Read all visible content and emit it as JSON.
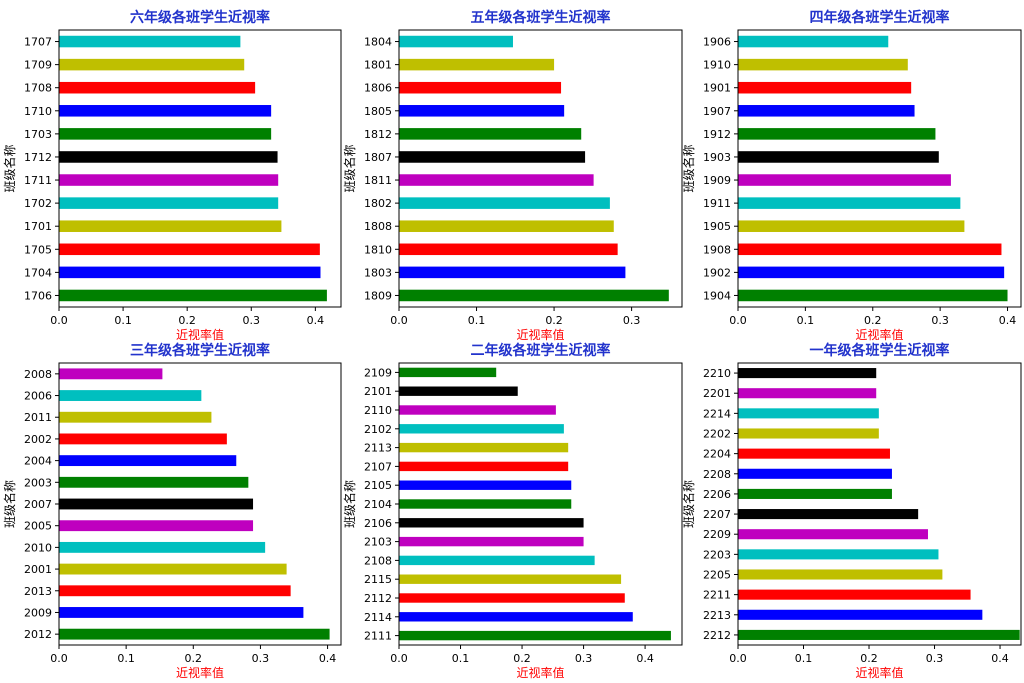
{
  "colors": {
    "cycle": [
      "#008000",
      "#0000ff",
      "#ff0000",
      "#bfbf00",
      "#00bfbf",
      "#bf00bf",
      "#000000"
    ],
    "title": "#2233cc",
    "xlabel": "#ff0000",
    "text": "#000000"
  },
  "chart_data": [
    {
      "type": "bar",
      "orientation": "horizontal",
      "title": "六年级各班学生近视率",
      "xlabel": "近视率值",
      "ylabel": "班级名称",
      "xlim": [
        0,
        0.44
      ],
      "xticks": [
        "0.0",
        "0.1",
        "0.2",
        "0.3",
        "0.4"
      ],
      "categories": [
        "1706",
        "1704",
        "1705",
        "1701",
        "1702",
        "1711",
        "1712",
        "1703",
        "1710",
        "1708",
        "1709",
        "1707"
      ],
      "values": [
        0.418,
        0.408,
        0.407,
        0.347,
        0.342,
        0.342,
        0.341,
        0.331,
        0.331,
        0.306,
        0.289,
        0.283
      ]
    },
    {
      "type": "bar",
      "orientation": "horizontal",
      "title": "五年级各班学生近视率",
      "xlabel": "近视率值",
      "ylabel": "班级名称",
      "xlim": [
        0,
        0.365
      ],
      "xticks": [
        "0.0",
        "0.1",
        "0.2",
        "0.3"
      ],
      "categories": [
        "1809",
        "1803",
        "1810",
        "1808",
        "1802",
        "1811",
        "1807",
        "1812",
        "1805",
        "1806",
        "1801",
        "1804"
      ],
      "values": [
        0.348,
        0.292,
        0.282,
        0.277,
        0.272,
        0.251,
        0.24,
        0.235,
        0.213,
        0.209,
        0.2,
        0.147
      ]
    },
    {
      "type": "bar",
      "orientation": "horizontal",
      "title": "四年级各班学生近视率",
      "xlabel": "近视率值",
      "ylabel": "班级名称",
      "xlim": [
        0,
        0.42
      ],
      "xticks": [
        "0.0",
        "0.1",
        "0.2",
        "0.3",
        "0.4"
      ],
      "categories": [
        "1904",
        "1902",
        "1908",
        "1905",
        "1911",
        "1909",
        "1903",
        "1912",
        "1907",
        "1901",
        "1910",
        "1906"
      ],
      "values": [
        0.4,
        0.395,
        0.391,
        0.336,
        0.33,
        0.316,
        0.298,
        0.293,
        0.262,
        0.257,
        0.252,
        0.223
      ]
    },
    {
      "type": "bar",
      "orientation": "horizontal",
      "title": "三年级各班学生近视率",
      "xlabel": "近视率值",
      "ylabel": "班级名称",
      "xlim": [
        0,
        0.42
      ],
      "xticks": [
        "0.0",
        "0.1",
        "0.2",
        "0.3",
        "0.4"
      ],
      "categories": [
        "2012",
        "2009",
        "2013",
        "2001",
        "2010",
        "2005",
        "2007",
        "2003",
        "2004",
        "2002",
        "2011",
        "2006",
        "2008"
      ],
      "values": [
        0.403,
        0.364,
        0.345,
        0.339,
        0.307,
        0.289,
        0.289,
        0.282,
        0.264,
        0.25,
        0.227,
        0.212,
        0.154
      ]
    },
    {
      "type": "bar",
      "orientation": "horizontal",
      "title": "二年级各班学生近视率",
      "xlabel": "近视率值",
      "ylabel": "班级名称",
      "xlim": [
        0,
        0.46
      ],
      "xticks": [
        "0.0",
        "0.1",
        "0.2",
        "0.3",
        "0.4"
      ],
      "categories": [
        "2111",
        "2114",
        "2112",
        "2115",
        "2108",
        "2103",
        "2106",
        "2104",
        "2105",
        "2107",
        "2113",
        "2102",
        "2110",
        "2101",
        "2109"
      ],
      "values": [
        0.442,
        0.38,
        0.367,
        0.361,
        0.318,
        0.3,
        0.3,
        0.28,
        0.28,
        0.275,
        0.275,
        0.268,
        0.255,
        0.193,
        0.158
      ]
    },
    {
      "type": "bar",
      "orientation": "horizontal",
      "title": "一年级各班学生近视率",
      "xlabel": "近视率值",
      "ylabel": "班级名称",
      "xlim": [
        0,
        0.432
      ],
      "xticks": [
        "0.0",
        "0.1",
        "0.2",
        "0.3",
        "0.4"
      ],
      "categories": [
        "2212",
        "2213",
        "2211",
        "2205",
        "2203",
        "2209",
        "2207",
        "2206",
        "2208",
        "2204",
        "2202",
        "2214",
        "2201",
        "2210"
      ],
      "values": [
        0.43,
        0.373,
        0.355,
        0.312,
        0.306,
        0.29,
        0.275,
        0.235,
        0.235,
        0.232,
        0.215,
        0.215,
        0.211,
        0.211
      ]
    }
  ]
}
